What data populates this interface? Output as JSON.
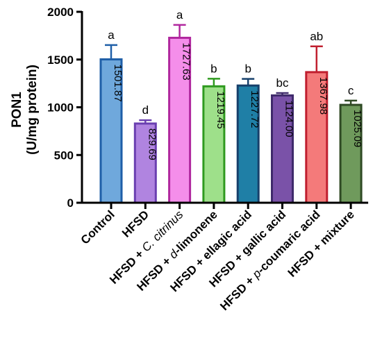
{
  "chart_data": {
    "type": "bar",
    "ylabel_line1": "PON1",
    "ylabel_line2": "(U/mg protein)",
    "ylim": [
      0,
      2000
    ],
    "yticks": [
      "0",
      "500",
      "1000",
      "1500",
      "2000"
    ],
    "grid": false,
    "legend": "none",
    "categories": [
      {
        "parts": [
          {
            "t": "Control"
          }
        ]
      },
      {
        "parts": [
          {
            "t": "HFSD"
          }
        ]
      },
      {
        "parts": [
          {
            "t": "HFSD + "
          },
          {
            "t": "C. citrinus",
            "italic": true
          }
        ]
      },
      {
        "parts": [
          {
            "t": "HFSD + "
          },
          {
            "t": "d",
            "italic": true
          },
          {
            "t": "-limonene"
          }
        ]
      },
      {
        "parts": [
          {
            "t": "HFSD + ellagic acid"
          }
        ]
      },
      {
        "parts": [
          {
            "t": "HFSD + gallic acid"
          }
        ]
      },
      {
        "parts": [
          {
            "t": "HFSD + "
          },
          {
            "t": "p",
            "italic": true
          },
          {
            "t": "-coumaric acid"
          }
        ]
      },
      {
        "parts": [
          {
            "t": "HFSD + mixture"
          }
        ]
      }
    ],
    "values": [
      1501.87,
      829.69,
      1727.63,
      1219.45,
      1227.72,
      1124.0,
      1367.98,
      1025.09
    ],
    "value_labels": [
      "1501.87",
      "829.69",
      "1727.63",
      "1219.45",
      "1227.72",
      "1124.00",
      "1367.98",
      "1025.09"
    ],
    "errors": [
      150,
      35,
      135,
      80,
      70,
      25,
      270,
      45
    ],
    "significance": [
      "a",
      "d",
      "a",
      "b",
      "b",
      "bc",
      "ab",
      "c"
    ],
    "fill_colors": [
      "#6FA8DC",
      "#B084E0",
      "#F48EEA",
      "#9EE08A",
      "#1F7FA6",
      "#7A52A8",
      "#F47A7A",
      "#6F9A5C"
    ],
    "edge_colors": [
      "#1F5FA8",
      "#6A3FB0",
      "#B0279E",
      "#2F9A1F",
      "#17406B",
      "#3F2A6B",
      "#C01F2F",
      "#2F4A24"
    ]
  }
}
